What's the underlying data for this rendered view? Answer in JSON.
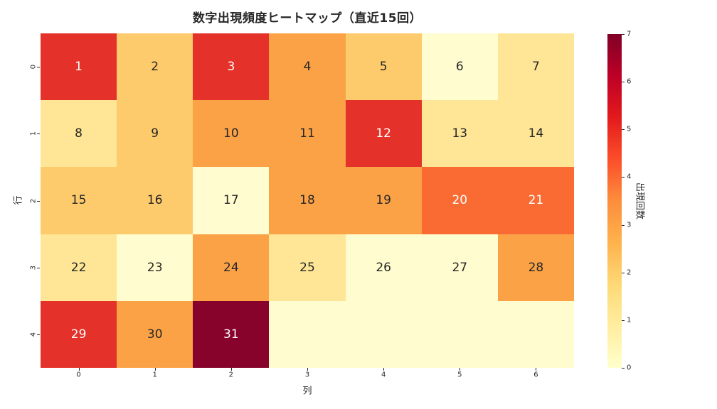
{
  "chart_data": {
    "type": "heatmap",
    "title": "数字出現頻度ヒートマップ（直近15回）",
    "xlabel": "列",
    "ylabel": "行",
    "colorbar_label": "出現回数",
    "x_tick_labels": [
      "0",
      "1",
      "2",
      "3",
      "4",
      "5",
      "6"
    ],
    "y_tick_labels": [
      "0",
      "1",
      "2",
      "3",
      "4"
    ],
    "colorbar_ticks": [
      0,
      1,
      2,
      3,
      4,
      5,
      6,
      7
    ],
    "vmin": 0,
    "vmax": 7,
    "colormap": "YlOrRd",
    "grid": false,
    "cell_labels": [
      [
        "1",
        "2",
        "3",
        "4",
        "5",
        "6",
        "7"
      ],
      [
        "8",
        "9",
        "10",
        "11",
        "12",
        "13",
        "14"
      ],
      [
        "15",
        "16",
        "17",
        "18",
        "19",
        "20",
        "21"
      ],
      [
        "22",
        "23",
        "24",
        "25",
        "26",
        "27",
        "28"
      ],
      [
        "29",
        "30",
        "31",
        "",
        "",
        "",
        ""
      ]
    ],
    "values": [
      [
        5,
        2,
        5,
        3,
        2,
        0,
        1
      ],
      [
        1,
        2,
        3,
        3,
        5,
        1,
        1
      ],
      [
        2,
        2,
        0,
        3,
        3,
        4,
        4
      ],
      [
        1,
        0,
        3,
        1,
        0,
        0,
        3
      ],
      [
        5,
        3,
        7,
        0,
        0,
        0,
        0
      ]
    ],
    "value_colors": {
      "0": "#fffccf",
      "1": "#fee696",
      "2": "#fdca6c",
      "3": "#fba246",
      "4": "#fa6a33",
      "5": "#e43129",
      "6": "#c20425",
      "7": "#87032c"
    },
    "colorbar_stops": [
      "#ffffcc",
      "#ffeda0",
      "#fed976",
      "#feb24c",
      "#fd8d3c",
      "#fc4e2a",
      "#e31a1c",
      "#bd0026",
      "#800026"
    ],
    "annotation_dark_color": "#262626",
    "annotation_light_color": "#ffffff",
    "white_text_threshold": 4
  }
}
